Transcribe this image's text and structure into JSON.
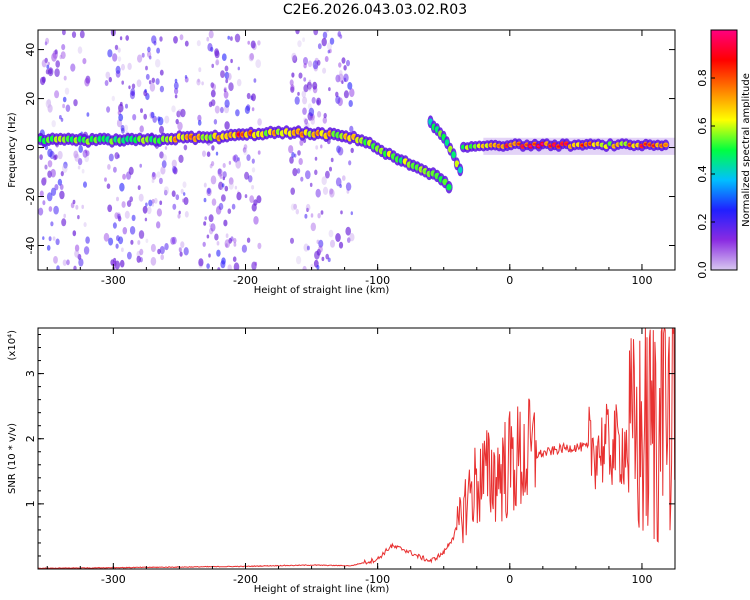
{
  "title": "C2E6.2026.043.03.02.R03",
  "chart_data": [
    {
      "type": "heatmap",
      "xlabel": "Height of straight line (km)",
      "ylabel": "Frequency (Hz)",
      "xlim": [
        -357,
        125
      ],
      "ylim": [
        -50,
        48
      ],
      "xticks": [
        -300,
        -200,
        -100,
        0,
        100
      ],
      "yticks": [
        -40,
        -20,
        0,
        20,
        40
      ],
      "colorbar": {
        "label": "Normalized spectral amplitude",
        "range": [
          0,
          1
        ],
        "ticks": [
          0.0,
          0.2,
          0.4,
          0.6,
          0.8
        ],
        "tick_labels": [
          "0.0",
          "0.2",
          "0.4",
          "0.6",
          "0.8"
        ],
        "colormap": [
          "#d8c8f0",
          "#8a2be2",
          "#2020ff",
          "#00c0ff",
          "#00ff40",
          "#ffff00",
          "#ff8000",
          "#ff0000",
          "#ff0080"
        ]
      },
      "main_band": [
        {
          "x": -355,
          "freq": 3,
          "amp": 0.5
        },
        {
          "x": -330,
          "freq": 3,
          "amp": 0.45
        },
        {
          "x": -300,
          "freq": 3,
          "amp": 0.45
        },
        {
          "x": -270,
          "freq": 3,
          "amp": 0.5
        },
        {
          "x": -250,
          "freq": 4,
          "amp": 0.75
        },
        {
          "x": -230,
          "freq": 4,
          "amp": 0.55
        },
        {
          "x": -205,
          "freq": 5,
          "amp": 0.8
        },
        {
          "x": -185,
          "freq": 6,
          "amp": 0.6
        },
        {
          "x": -160,
          "freq": 6,
          "amp": 0.65
        },
        {
          "x": -130,
          "freq": 5,
          "amp": 0.6
        },
        {
          "x": -110,
          "freq": 3,
          "amp": 0.55
        },
        {
          "x": -95,
          "freq": -2,
          "amp": 0.5
        },
        {
          "x": -80,
          "freq": -6,
          "amp": 0.5
        },
        {
          "x": -65,
          "freq": -9,
          "amp": 0.45
        },
        {
          "x": -55,
          "freq": -12,
          "amp": 0.45
        },
        {
          "x": -45,
          "freq": -16,
          "amp": 0.4
        }
      ],
      "upper_branch": [
        {
          "x": -60,
          "freq": 10,
          "amp": 0.4
        },
        {
          "x": -50,
          "freq": 4,
          "amp": 0.45
        },
        {
          "x": -42,
          "freq": -4,
          "amp": 0.5
        },
        {
          "x": -37,
          "freq": -10,
          "amp": 0.4
        }
      ],
      "right_band": [
        {
          "x": -35,
          "freq": 0,
          "amp": 0.5
        },
        {
          "x": -20,
          "freq": 1,
          "amp": 0.6
        },
        {
          "x": 0,
          "freq": 1,
          "amp": 0.85
        },
        {
          "x": 20,
          "freq": 1,
          "amp": 0.9
        },
        {
          "x": 40,
          "freq": 1,
          "amp": 0.85
        },
        {
          "x": 60,
          "freq": 1,
          "amp": 0.7
        },
        {
          "x": 80,
          "freq": 1,
          "amp": 0.6
        },
        {
          "x": 100,
          "freq": 1,
          "amp": 0.8
        },
        {
          "x": 120,
          "freq": 1,
          "amp": 0.6
        }
      ],
      "noise_columns_x": [
        -350,
        -340,
        -325,
        -300,
        -290,
        -275,
        -265,
        -250,
        -230,
        -220,
        -210,
        -195,
        -160,
        -150,
        -140,
        -125
      ]
    },
    {
      "type": "line",
      "xlabel": "Height of straight line (km)",
      "ylabel": "SNR (10 * v/v)",
      "multiplier": "(x10⁴)",
      "xlim": [
        -357,
        125
      ],
      "ylim": [
        0,
        3.7
      ],
      "xticks": [
        -300,
        -200,
        -100,
        0,
        100
      ],
      "yticks": [
        1,
        2,
        3
      ],
      "series": [
        {
          "color": "#e83030",
          "x": [
            -357,
            -300,
            -250,
            -200,
            -180,
            -150,
            -120,
            -100,
            -90,
            -80,
            -70,
            -60,
            -50,
            -40,
            -30,
            -20,
            -10,
            0,
            10,
            20,
            30,
            40,
            50,
            60,
            70,
            80,
            90,
            100,
            110,
            120,
            125
          ],
          "y": [
            0.01,
            0.02,
            0.03,
            0.04,
            0.05,
            0.06,
            0.05,
            0.15,
            0.35,
            0.3,
            0.2,
            0.12,
            0.25,
            0.6,
            1.2,
            1.4,
            1.45,
            1.6,
            1.7,
            1.75,
            1.8,
            1.85,
            1.87,
            1.87,
            1.88,
            1.88,
            1.9,
            2.0,
            2.2,
            2.4,
            2.5
          ]
        }
      ]
    }
  ]
}
